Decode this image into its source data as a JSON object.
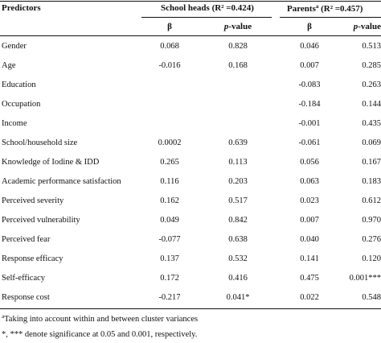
{
  "headers": {
    "predictors": "Predictors",
    "school_heads": "School heads (R² =0.424)",
    "parents_prefix": "Parents",
    "parents_sup": "a",
    "parents_suffix": " (R² =0.457)",
    "beta": "β",
    "pvalue_italic": "p",
    "pvalue_rest": "-value"
  },
  "rows": [
    {
      "label": "Gender",
      "sh_beta": "0.068",
      "sh_p": "0.828",
      "pa_beta": "0.046",
      "pa_p": "0.513"
    },
    {
      "label": "Age",
      "sh_beta": "-0.016",
      "sh_p": "0.168",
      "pa_beta": "0.007",
      "pa_p": "0.285"
    },
    {
      "label": "Education",
      "sh_beta": "",
      "sh_p": "",
      "pa_beta": "-0.083",
      "pa_p": "0.263"
    },
    {
      "label": "Occupation",
      "sh_beta": "",
      "sh_p": "",
      "pa_beta": "-0.184",
      "pa_p": "0.144"
    },
    {
      "label": "Income",
      "sh_beta": "",
      "sh_p": "",
      "pa_beta": "-0.001",
      "pa_p": "0.435"
    },
    {
      "label": "School/household size",
      "sh_beta": "0.0002",
      "sh_p": "0.639",
      "pa_beta": "-0.061",
      "pa_p": "0.069"
    },
    {
      "label": "Knowledge of Iodine & IDD",
      "sh_beta": "0.265",
      "sh_p": "0.113",
      "pa_beta": "0.056",
      "pa_p": "0.167"
    },
    {
      "label": "Academic performance satisfaction",
      "sh_beta": "0.116",
      "sh_p": "0.203",
      "pa_beta": "0.063",
      "pa_p": "0.183"
    },
    {
      "label": "Perceived severity",
      "sh_beta": "0.162",
      "sh_p": "0.517",
      "pa_beta": "0.023",
      "pa_p": "0.612"
    },
    {
      "label": "Perceived vulnerability",
      "sh_beta": "0.049",
      "sh_p": "0.842",
      "pa_beta": "0.007",
      "pa_p": "0.970"
    },
    {
      "label": "Perceived fear",
      "sh_beta": "-0.077",
      "sh_p": "0.638",
      "pa_beta": "0.040",
      "pa_p": "0.276"
    },
    {
      "label": "Response efficacy",
      "sh_beta": "0.137",
      "sh_p": "0.532",
      "pa_beta": "0.141",
      "pa_p": "0.120"
    },
    {
      "label": "Self-efficacy",
      "sh_beta": "0.172",
      "sh_p": "0.416",
      "pa_beta": "0.475",
      "pa_p": "0.001***"
    },
    {
      "label": "Response cost",
      "sh_beta": "-0.217",
      "sh_p": "0.041*",
      "pa_beta": "0.022",
      "pa_p": "0.548"
    }
  ],
  "footnotes": {
    "note_a_sup": "a",
    "note_a": "Taking into account within and between cluster variances",
    "note_sig": "*, *** denote significance at 0.05 and 0.001, respectively."
  }
}
